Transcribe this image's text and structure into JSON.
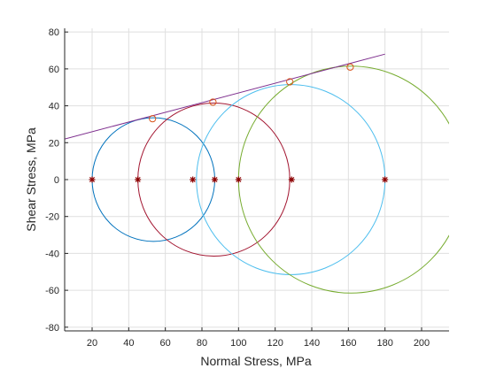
{
  "chart_data": {
    "type": "scatter",
    "title": "",
    "xlabel": "Normal Stress, MPa",
    "ylabel": "Shear Stress, MPa",
    "xlim": [
      5,
      215
    ],
    "ylim": [
      -82,
      82
    ],
    "xticks": [
      20,
      40,
      60,
      80,
      100,
      120,
      140,
      160,
      180,
      200
    ],
    "yticks": [
      -80,
      -60,
      -40,
      -20,
      0,
      20,
      40,
      60,
      80
    ],
    "grid": true,
    "circles": [
      {
        "center": 53.5,
        "radius": 33.5,
        "color": "#0072BD"
      },
      {
        "center": 86.5,
        "radius": 41.5,
        "color": "#A2142F"
      },
      {
        "center": 128.5,
        "radius": 51.5,
        "color": "#4DBEEE"
      },
      {
        "center": 161.5,
        "radius": 61.5,
        "color": "#77AC30"
      }
    ],
    "principal_stress_points": {
      "x": [
        20,
        45,
        75,
        87,
        100,
        129,
        180
      ],
      "y": [
        0,
        0,
        0,
        0,
        0,
        0,
        0
      ],
      "color": "#8B0000"
    },
    "tangent_points": {
      "x": [
        53,
        86,
        128,
        161
      ],
      "y": [
        33,
        42,
        53,
        61
      ],
      "color": "#D95319"
    },
    "envelope_line": {
      "x": [
        5,
        180
      ],
      "y": [
        22,
        68
      ],
      "color": "#7E2F8E"
    }
  }
}
